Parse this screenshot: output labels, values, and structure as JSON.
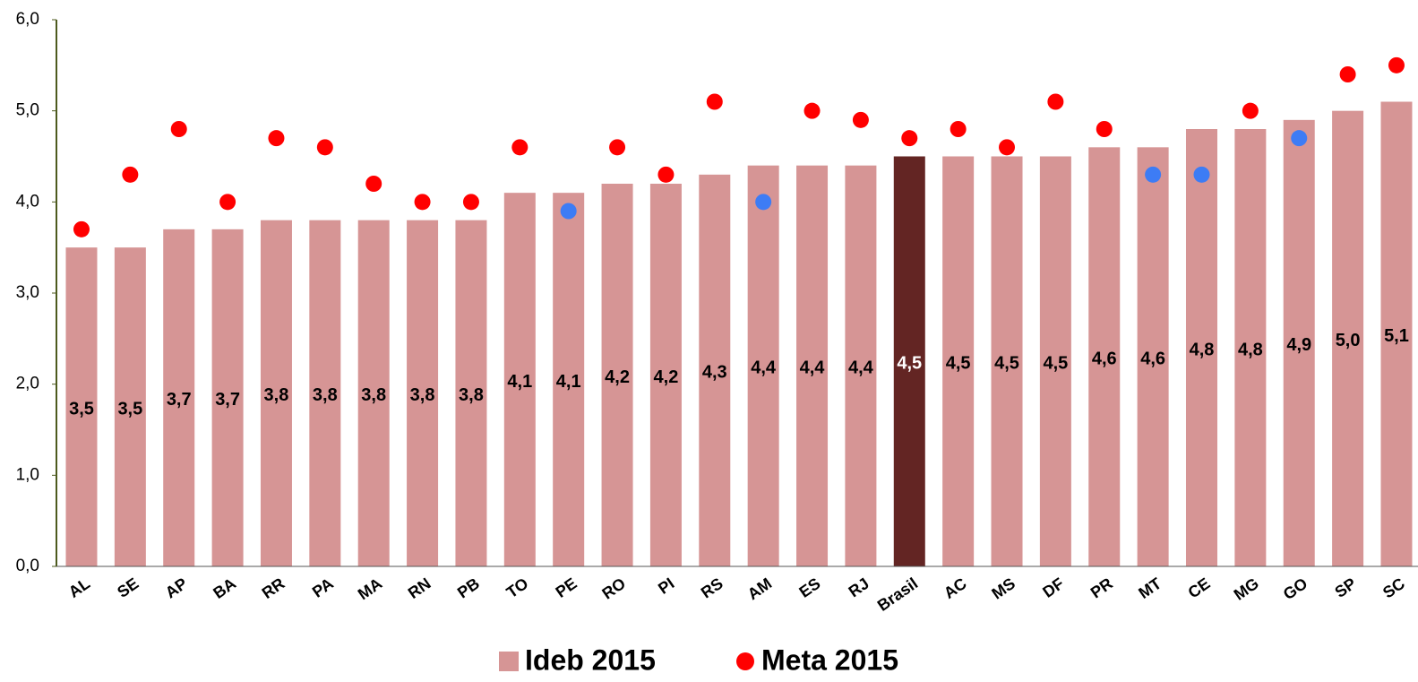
{
  "chart_data": {
    "type": "bar",
    "categories": [
      "AL",
      "SE",
      "AP",
      "BA",
      "RR",
      "PA",
      "MA",
      "RN",
      "PB",
      "TO",
      "PE",
      "RO",
      "PI",
      "RS",
      "AM",
      "ES",
      "RJ",
      "Brasil",
      "AC",
      "MS",
      "DF",
      "PR",
      "MT",
      "CE",
      "MG",
      "GO",
      "SP",
      "SC"
    ],
    "series": [
      {
        "name": "Ideb 2015",
        "type": "bar",
        "color": "#d69595",
        "colors": [
          "#d69595",
          "#d69595",
          "#d69595",
          "#d69595",
          "#d69595",
          "#d69595",
          "#d69595",
          "#d69595",
          "#d69595",
          "#d69595",
          "#d69595",
          "#d69595",
          "#d69595",
          "#d69595",
          "#d69595",
          "#d69595",
          "#d69595",
          "#632523",
          "#d69595",
          "#d69595",
          "#d69595",
          "#d69595",
          "#d69595",
          "#d69595",
          "#d69595",
          "#d69595",
          "#d69595",
          "#d69595"
        ],
        "values": [
          3.5,
          3.5,
          3.7,
          3.7,
          3.8,
          3.8,
          3.8,
          3.8,
          3.8,
          4.1,
          4.1,
          4.2,
          4.2,
          4.3,
          4.4,
          4.4,
          4.4,
          4.5,
          4.5,
          4.5,
          4.5,
          4.6,
          4.6,
          4.8,
          4.8,
          4.9,
          5.0,
          5.1
        ],
        "value_labels": [
          "3,5",
          "3,5",
          "3,7",
          "3,7",
          "3,8",
          "3,8",
          "3,8",
          "3,8",
          "3,8",
          "4,1",
          "4,1",
          "4,2",
          "4,2",
          "4,3",
          "4,4",
          "4,4",
          "4,4",
          "4,5",
          "4,5",
          "4,5",
          "4,5",
          "4,6",
          "4,6",
          "4,8",
          "4,8",
          "4,9",
          "5,0",
          "5,1"
        ]
      },
      {
        "name": "Meta 2015",
        "type": "scatter",
        "color": "#ff0000",
        "colors": [
          "#ff0000",
          "#ff0000",
          "#ff0000",
          "#ff0000",
          "#ff0000",
          "#ff0000",
          "#ff0000",
          "#ff0000",
          "#ff0000",
          "#ff0000",
          "#3d7cf5",
          "#ff0000",
          "#ff0000",
          "#ff0000",
          "#3d7cf5",
          "#ff0000",
          "#ff0000",
          "#ff0000",
          "#ff0000",
          "#ff0000",
          "#ff0000",
          "#ff0000",
          "#3d7cf5",
          "#3d7cf5",
          "#ff0000",
          "#3d7cf5",
          "#ff0000",
          "#ff0000"
        ],
        "values": [
          3.7,
          4.3,
          4.8,
          4.0,
          4.7,
          4.6,
          4.2,
          4.0,
          4.0,
          4.6,
          3.9,
          4.6,
          4.3,
          5.1,
          4.0,
          5.0,
          4.9,
          4.7,
          4.8,
          4.6,
          5.1,
          4.8,
          4.3,
          4.3,
          5.0,
          4.7,
          5.4,
          5.5
        ]
      }
    ],
    "ylim": [
      0,
      6
    ],
    "yticks": [
      {
        "value": 0,
        "label": "0,0"
      },
      {
        "value": 1,
        "label": "1,0"
      },
      {
        "value": 2,
        "label": "2,0"
      },
      {
        "value": 3,
        "label": "3,0"
      },
      {
        "value": 4,
        "label": "4,0"
      },
      {
        "value": 5,
        "label": "5,0"
      },
      {
        "value": 6,
        "label": "6,0"
      }
    ],
    "legend": "bottom"
  }
}
